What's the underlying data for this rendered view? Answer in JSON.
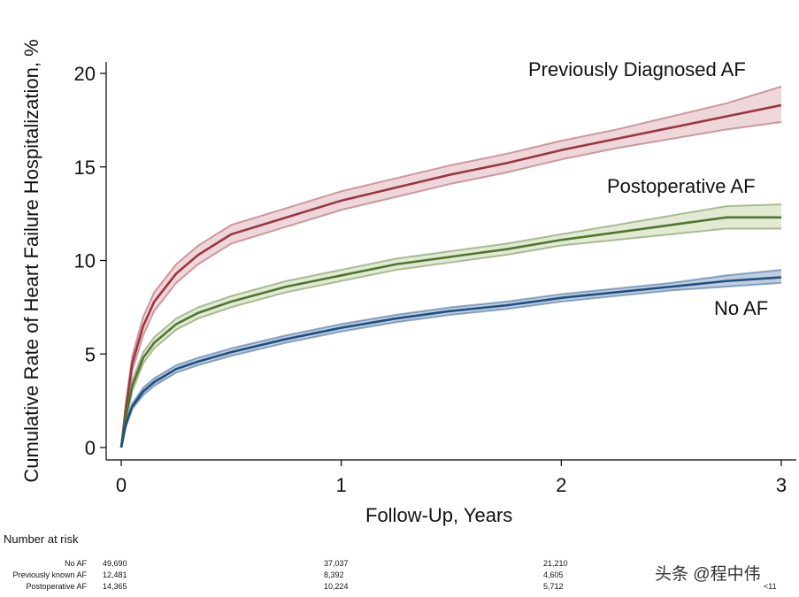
{
  "chart_data": {
    "type": "line",
    "xlabel": "Follow-Up, Years",
    "ylabel": "Cumulative Rate of Heart Failure Hospitalization, %",
    "xlim": [
      0,
      3
    ],
    "ylim": [
      0,
      20
    ],
    "xticks": [
      "0",
      "1",
      "2",
      "3"
    ],
    "yticks": [
      "0",
      "5",
      "10",
      "15",
      "20"
    ],
    "grid": false,
    "series": [
      {
        "name": "Previously Diagnosed AF",
        "color": "#9e3440",
        "band_color": "#e8c9cd",
        "x": [
          0,
          0.02,
          0.05,
          0.1,
          0.15,
          0.25,
          0.35,
          0.5,
          0.75,
          1.0,
          1.25,
          1.5,
          1.75,
          2.0,
          2.25,
          2.5,
          2.75,
          3.0
        ],
        "y": [
          0,
          2.0,
          4.5,
          6.5,
          7.8,
          9.3,
          10.3,
          11.4,
          12.3,
          13.2,
          13.9,
          14.6,
          15.2,
          15.9,
          16.5,
          17.1,
          17.7,
          18.3
        ],
        "lower": [
          0,
          1.7,
          4.1,
          6.0,
          7.3,
          8.8,
          9.8,
          10.9,
          11.8,
          12.7,
          13.4,
          14.1,
          14.7,
          15.4,
          16.0,
          16.5,
          17.0,
          17.4
        ],
        "upper": [
          0,
          2.3,
          4.9,
          7.0,
          8.3,
          9.8,
          10.8,
          11.9,
          12.8,
          13.7,
          14.4,
          15.1,
          15.7,
          16.4,
          17.0,
          17.7,
          18.4,
          19.3
        ]
      },
      {
        "name": "Postoperative AF",
        "color": "#4f7530",
        "band_color": "#d8e3c6",
        "x": [
          0,
          0.02,
          0.05,
          0.1,
          0.15,
          0.25,
          0.35,
          0.5,
          0.75,
          1.0,
          1.25,
          1.5,
          1.75,
          2.0,
          2.25,
          2.5,
          2.75,
          3.0
        ],
        "y": [
          0,
          1.6,
          3.3,
          4.8,
          5.6,
          6.6,
          7.2,
          7.8,
          8.6,
          9.2,
          9.8,
          10.2,
          10.6,
          11.1,
          11.5,
          11.9,
          12.3,
          12.3
        ],
        "lower": [
          0,
          1.3,
          3.0,
          4.5,
          5.3,
          6.3,
          6.9,
          7.5,
          8.3,
          8.9,
          9.5,
          9.9,
          10.3,
          10.8,
          11.1,
          11.4,
          11.7,
          11.7
        ],
        "upper": [
          0,
          1.9,
          3.6,
          5.1,
          5.9,
          6.9,
          7.5,
          8.1,
          8.9,
          9.5,
          10.1,
          10.5,
          10.9,
          11.4,
          11.9,
          12.4,
          12.9,
          13.0
        ]
      },
      {
        "name": "No AF",
        "color": "#1f4e82",
        "band_color": "#a8bdd6",
        "x": [
          0,
          0.02,
          0.05,
          0.1,
          0.15,
          0.25,
          0.35,
          0.5,
          0.75,
          1.0,
          1.25,
          1.5,
          1.75,
          2.0,
          2.25,
          2.5,
          2.75,
          3.0
        ],
        "y": [
          0,
          1.2,
          2.2,
          3.0,
          3.5,
          4.2,
          4.6,
          5.1,
          5.8,
          6.4,
          6.9,
          7.3,
          7.6,
          8.0,
          8.3,
          8.6,
          8.9,
          9.1
        ],
        "lower": [
          0,
          1.05,
          2.05,
          2.8,
          3.3,
          4.0,
          4.4,
          4.9,
          5.6,
          6.2,
          6.7,
          7.1,
          7.4,
          7.8,
          8.1,
          8.4,
          8.6,
          8.8
        ],
        "upper": [
          0,
          1.35,
          2.35,
          3.2,
          3.7,
          4.4,
          4.8,
          5.3,
          6.0,
          6.6,
          7.1,
          7.5,
          7.8,
          8.2,
          8.5,
          8.8,
          9.2,
          9.5
        ]
      }
    ]
  },
  "risk_table": {
    "title": "Number at risk",
    "rows": [
      {
        "label": "No AF",
        "values": [
          "49,690",
          "37,037",
          "21,210",
          ""
        ]
      },
      {
        "label": "Previously known AF",
        "values": [
          "12,481",
          "8,392",
          "4,605",
          ""
        ]
      },
      {
        "label": "Postoperative AF",
        "values": [
          "14,365",
          "10,224",
          "5,712",
          "<11"
        ]
      }
    ]
  },
  "watermark": "头条 @程中伟"
}
